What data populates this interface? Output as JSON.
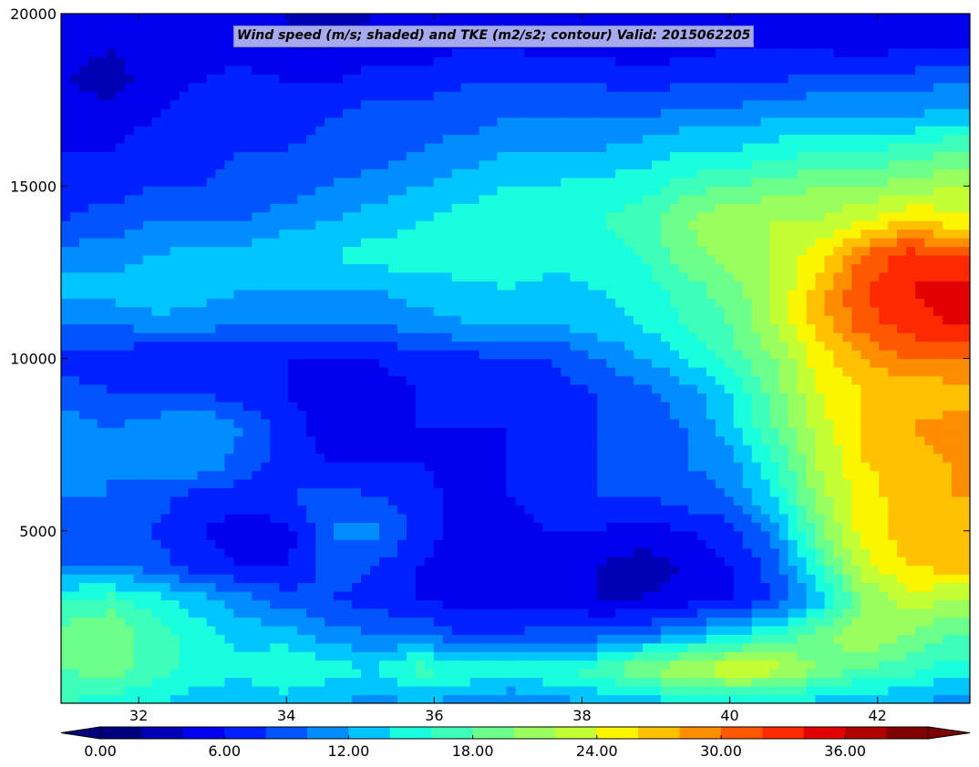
{
  "chart_data": {
    "type": "heatmap",
    "title": "Wind speed (m/s; shaded) and TKE (m2/s2; contour) Valid: 2015062205",
    "xlabel": "",
    "ylabel": "",
    "xlim": [
      30.95,
      43.25
    ],
    "ylim": [
      0,
      20000
    ],
    "x_ticks": [
      32,
      34,
      36,
      38,
      40,
      42
    ],
    "x_tick_labels": [
      "32",
      "34",
      "36",
      "38",
      "40",
      "42"
    ],
    "y_ticks": [
      5000,
      10000,
      15000,
      20000
    ],
    "y_tick_labels": [
      "5000",
      "10000",
      "15000",
      "20000"
    ],
    "colorbar": {
      "orientation": "horizontal",
      "extend": "both",
      "levels": [
        0,
        2,
        4,
        6,
        8,
        10,
        12,
        14,
        16,
        18,
        20,
        22,
        24,
        26,
        28,
        30,
        32,
        34,
        36,
        38,
        40
      ],
      "tick_values": [
        0,
        6,
        12,
        18,
        24,
        30,
        36
      ],
      "tick_labels": [
        "0.00",
        "6.00",
        "12.00",
        "18.00",
        "24.00",
        "30.00",
        "36.00"
      ],
      "colormap": "jet",
      "colors": [
        "#00007f",
        "#0000b5",
        "#0000ee",
        "#0021ff",
        "#0055ff",
        "#008dff",
        "#00c5ff",
        "#19ffde",
        "#3effb9",
        "#6bff8c",
        "#98ff5f",
        "#c3ff33",
        "#fcf500",
        "#ffc100",
        "#ff8d00",
        "#ff5900",
        "#ff2900",
        "#e30000",
        "#b10000",
        "#7f0000"
      ]
    },
    "x": [
      31.0,
      31.6,
      32.2,
      32.8,
      33.4,
      34.0,
      34.6,
      35.2,
      35.8,
      36.4,
      37.0,
      37.6,
      38.2,
      38.8,
      39.4,
      40.0,
      40.6,
      41.2,
      41.8,
      42.4,
      43.0
    ],
    "y": [
      0,
      1000,
      2000,
      3000,
      4000,
      5000,
      6000,
      7000,
      8000,
      9000,
      10000,
      11000,
      12000,
      13000,
      14000,
      15000,
      16000,
      17000,
      18000,
      19000,
      20000
    ],
    "values": [
      [
        16,
        15,
        14,
        13,
        12,
        13,
        12,
        11,
        12,
        11,
        10,
        11,
        12,
        13,
        13,
        14,
        14,
        13,
        12,
        12,
        11
      ],
      [
        18,
        19,
        17,
        15,
        15,
        16,
        15,
        14,
        17,
        16,
        15,
        16,
        17,
        20,
        22,
        24,
        23,
        20,
        18,
        17,
        15
      ],
      [
        19,
        20,
        17,
        15,
        13,
        13,
        11,
        10,
        10,
        8,
        8,
        9,
        9,
        10,
        12,
        14,
        16,
        19,
        22,
        20,
        18
      ],
      [
        16,
        17,
        15,
        13,
        11,
        9,
        8,
        7,
        6,
        5,
        5,
        5,
        4,
        4,
        5,
        6,
        8,
        13,
        20,
        23,
        22
      ],
      [
        10,
        10,
        9,
        7,
        6,
        6,
        9,
        8,
        6,
        5,
        5,
        5,
        4,
        3,
        4,
        6,
        9,
        16,
        23,
        26,
        27
      ],
      [
        9,
        9,
        8,
        6,
        5,
        5,
        10,
        11,
        7,
        5,
        5,
        6,
        6,
        5,
        6,
        7,
        11,
        19,
        25,
        27,
        27
      ],
      [
        10,
        10,
        9,
        7,
        7,
        8,
        9,
        8,
        7,
        5,
        6,
        7,
        8,
        8,
        9,
        10,
        14,
        21,
        25,
        27,
        28
      ],
      [
        10,
        10,
        11,
        12,
        9,
        7,
        6,
        6,
        6,
        5,
        6,
        6,
        8,
        9,
        10,
        11,
        16,
        22,
        26,
        27,
        28
      ],
      [
        11,
        10,
        11,
        12,
        10,
        7,
        5,
        5,
        6,
        6,
        6,
        7,
        8,
        9,
        10,
        13,
        18,
        23,
        26,
        28,
        29
      ],
      [
        9,
        8,
        8,
        8,
        7,
        6,
        5,
        5,
        6,
        6,
        7,
        7,
        8,
        9,
        11,
        14,
        19,
        24,
        26,
        26,
        27
      ],
      [
        7,
        7,
        6,
        6,
        6,
        6,
        6,
        6,
        7,
        7,
        8,
        8,
        10,
        12,
        14,
        17,
        20,
        25,
        28,
        30,
        30
      ],
      [
        10,
        10,
        11,
        11,
        10,
        10,
        10,
        10,
        11,
        12,
        12,
        12,
        13,
        14,
        16,
        18,
        22,
        27,
        31,
        33,
        34
      ],
      [
        13,
        13,
        14,
        13,
        12,
        12,
        12,
        12,
        13,
        13,
        14,
        13,
        14,
        15,
        17,
        19,
        22,
        27,
        32,
        34,
        35
      ],
      [
        11,
        11,
        12,
        13,
        13,
        14,
        14,
        15,
        15,
        16,
        16,
        15,
        15,
        16,
        19,
        21,
        22,
        25,
        30,
        33,
        32
      ],
      [
        8,
        9,
        10,
        10,
        10,
        11,
        12,
        13,
        14,
        15,
        16,
        15,
        16,
        17,
        20,
        22,
        22,
        22,
        24,
        26,
        25
      ],
      [
        7,
        7,
        8,
        8,
        9,
        9,
        10,
        11,
        12,
        13,
        14,
        14,
        15,
        15,
        17,
        18,
        19,
        20,
        20,
        21,
        22
      ],
      [
        6,
        6,
        7,
        7,
        8,
        8,
        9,
        9,
        10,
        11,
        12,
        12,
        12,
        13,
        14,
        14,
        15,
        16,
        16,
        17,
        18
      ],
      [
        6,
        5,
        6,
        7,
        8,
        7,
        8,
        9,
        9,
        9,
        10,
        10,
        10,
        10,
        11,
        11,
        12,
        12,
        12,
        12,
        13
      ],
      [
        4,
        3,
        5,
        6,
        7,
        6,
        6,
        7,
        7,
        8,
        8,
        8,
        8,
        7,
        8,
        8,
        8,
        9,
        9,
        9,
        10
      ],
      [
        5,
        4,
        5,
        5,
        5,
        4,
        4,
        5,
        5,
        6,
        6,
        5,
        5,
        5,
        5,
        6,
        6,
        6,
        5,
        6,
        6
      ],
      [
        6,
        5,
        5,
        5,
        4,
        4,
        3,
        4,
        4,
        5,
        5,
        4,
        4,
        4,
        4,
        4,
        5,
        5,
        4,
        5,
        5
      ]
    ]
  }
}
